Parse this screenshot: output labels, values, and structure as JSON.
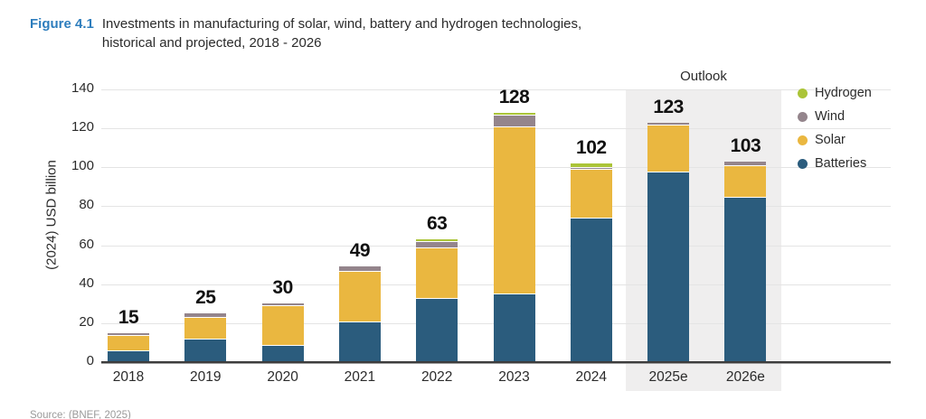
{
  "title": {
    "figure_label": "Figure 4.1",
    "line1": "Investments in manufacturing of solar, wind, battery and hydrogen technologies,",
    "line2": "historical and projected, 2018 - 2026"
  },
  "chart": {
    "outlook_label": "Outlook",
    "y_axis_label": "(2024) USD billion"
  },
  "source_note": "Source: (BNEF, 2025)",
  "colors": {
    "figure_label_blue": "#2d7dbd",
    "outlook_band": "#efeeee",
    "gridline": "#e4e4e4",
    "axis": "#3d3d3d",
    "value_label": "#111111"
  },
  "chart_data": {
    "type": "bar",
    "stacked": true,
    "title": "Investments in manufacturing of solar, wind, battery and hydrogen technologies, historical and projected, 2018 - 2026",
    "categories": [
      "2018",
      "2019",
      "2020",
      "2021",
      "2022",
      "2023",
      "2024",
      "2025e",
      "2026e"
    ],
    "series": [
      {
        "name": "Batteries",
        "color": "#2b5c7d",
        "values": [
          6,
          12,
          9,
          21,
          33,
          35,
          74,
          98,
          85
        ]
      },
      {
        "name": "Solar",
        "color": "#eab740",
        "values": [
          8,
          11,
          20,
          26,
          26,
          86,
          25,
          24,
          16
        ]
      },
      {
        "name": "Wind",
        "color": "#94858c",
        "values": [
          1,
          2,
          1,
          2,
          3,
          6,
          1,
          1,
          2
        ]
      },
      {
        "name": "Hydrogen",
        "color": "#abc438",
        "values": [
          0,
          0,
          0,
          0,
          1,
          1,
          2,
          0,
          0
        ]
      }
    ],
    "totals": [
      15,
      25,
      30,
      49,
      63,
      128,
      102,
      123,
      103
    ],
    "xlabel": "",
    "ylabel": "(2024) USD billion",
    "ylim": [
      0,
      140
    ],
    "yticks": [
      0,
      20,
      40,
      60,
      80,
      100,
      120,
      140
    ],
    "legend": [
      "Hydrogen",
      "Wind",
      "Solar",
      "Batteries"
    ],
    "legend_position": "right",
    "grid": true,
    "outlook_categories": [
      "2025e",
      "2026e"
    ]
  }
}
